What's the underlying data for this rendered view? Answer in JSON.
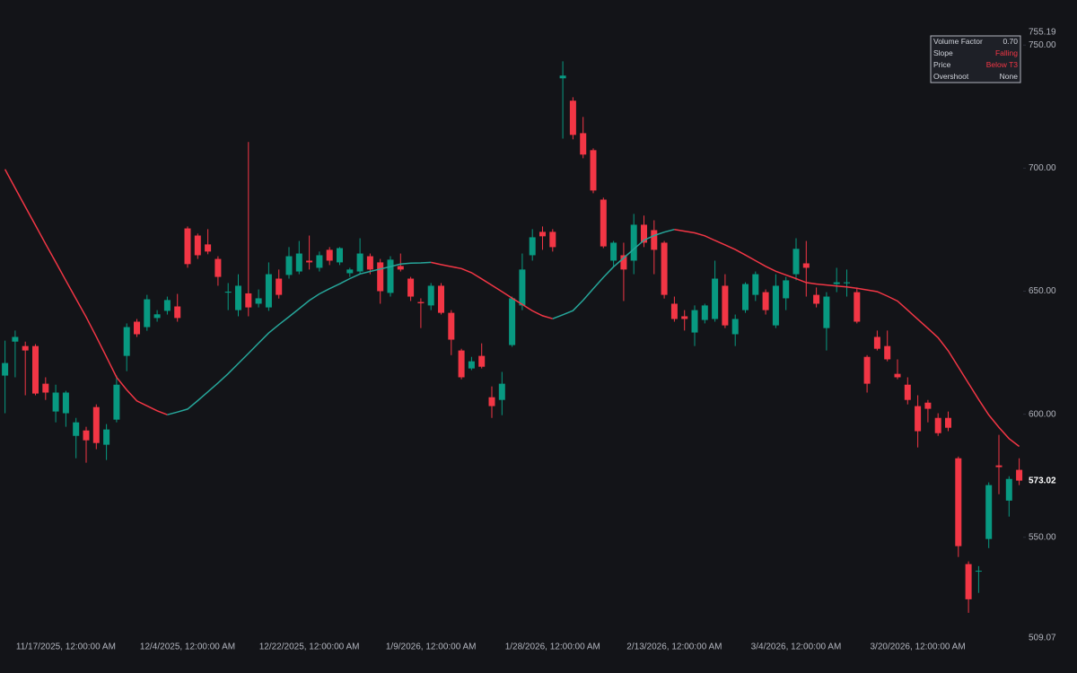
{
  "chart_data": {
    "type": "candlestick",
    "categories": [
      null,
      null,
      null,
      null,
      null,
      null,
      "11/17/2025, 12:00:00 AM",
      null,
      null,
      null,
      null,
      null,
      null,
      null,
      null,
      null,
      null,
      null,
      "12/4/2025, 12:00:00 AM",
      null,
      null,
      null,
      null,
      null,
      null,
      null,
      null,
      null,
      null,
      null,
      "12/22/2025, 12:00:00 AM",
      null,
      null,
      null,
      null,
      null,
      null,
      null,
      null,
      null,
      null,
      null,
      "1/9/2026, 12:00:00 AM",
      null,
      null,
      null,
      null,
      null,
      null,
      null,
      null,
      null,
      null,
      null,
      "1/28/2026, 12:00:00 AM",
      null,
      null,
      null,
      null,
      null,
      null,
      null,
      null,
      null,
      null,
      null,
      "2/13/2026, 12:00:00 AM",
      null,
      null,
      null,
      null,
      null,
      null,
      null,
      null,
      null,
      null,
      null,
      "3/4/2026, 12:00:00 AM",
      null,
      null,
      null,
      null,
      null,
      null,
      null,
      null,
      null,
      null,
      null,
      "3/20/2026, 12:00:00 AM",
      null,
      null,
      null,
      null,
      null,
      null,
      null,
      null,
      null,
      null
    ],
    "open": [
      615.7,
      629.5,
      627.7,
      627.7,
      612.4,
      601.1,
      600.4,
      591.2,
      593.4,
      602.9,
      587.6,
      597.8,
      623.7,
      637.6,
      635.4,
      639.1,
      642,
      643.8,
      675.5,
      672.6,
      669,
      663.1,
      649.4,
      642.3,
      649.1,
      644.9,
      643.4,
      655.1,
      656.6,
      658,
      662.4,
      659.5,
      666.8,
      661.7,
      657.3,
      658,
      664.2,
      661.7,
      649.3,
      660.2,
      655.1,
      645.6,
      644.2,
      652.2,
      641.2,
      625.9,
      618.6,
      623.7,
      606.9,
      605.8,
      628.1,
      644.2,
      664.6,
      674.1,
      674.1,
      736.5,
      727.4,
      714.2,
      707.3,
      687.2,
      662.4,
      664.6,
      662.4,
      677,
      674.8,
      669.7,
      644.9,
      639.8,
      633.2,
      638.3,
      638.7,
      652.2,
      632.5,
      642.3,
      648.5,
      649.6,
      636.1,
      647.1,
      656.9,
      661.3,
      648.5,
      635,
      652.9,
      653.2,
      649.6,
      623.3,
      631.4,
      627.7,
      616.4,
      612,
      603.3,
      604.7,
      598.5,
      598.5,
      582.1,
      539.1,
      536.2,
      549.3,
      579.2,
      564.9,
      577.4
    ],
    "high": [
      629.9,
      634,
      629.5,
      628.5,
      615,
      612,
      609.5,
      598.5,
      594.9,
      604,
      596,
      615.7,
      636.9,
      638.7,
      648.5,
      642.3,
      647.8,
      648.9,
      676.3,
      673.4,
      675.2,
      664.2,
      653.3,
      656.9,
      710.6,
      650.7,
      661.7,
      658.8,
      667.9,
      670.4,
      672.6,
      666.1,
      667.9,
      667.9,
      659.5,
      671.5,
      665.3,
      663.1,
      664.2,
      665.3,
      655.8,
      647.1,
      653.3,
      653.3,
      642.3,
      626.6,
      623.3,
      628.8,
      611.3,
      617.2,
      647.8,
      665.3,
      675.2,
      676.3,
      675.2,
      743.4,
      728.8,
      720.8,
      708,
      688,
      670.4,
      669.7,
      681.4,
      680.7,
      678.8,
      670.4,
      647.8,
      642.3,
      644.2,
      644.9,
      662.4,
      656.9,
      640.5,
      653.6,
      658,
      650.7,
      656.9,
      655.8,
      671.5,
      670.4,
      651.5,
      649.6,
      659.5,
      658.8,
      651.5,
      624,
      634,
      634,
      622.3,
      615,
      607.7,
      605.8,
      600.4,
      601.1,
      582.8,
      540.2,
      538.3,
      572.3,
      591.6,
      574.8,
      582.1
    ],
    "low": [
      600.4,
      615,
      607.7,
      607.7,
      605.8,
      596.7,
      594.9,
      582.1,
      580.3,
      585.8,
      581.4,
      596.7,
      617.5,
      631.4,
      633.9,
      637.6,
      640.5,
      637.6,
      659.5,
      663.1,
      665,
      652.2,
      642.3,
      639.8,
      639.8,
      643.4,
      642,
      647,
      655.1,
      656.9,
      658.8,
      658,
      660.6,
      660.6,
      655.8,
      656.9,
      656.9,
      644.9,
      647.8,
      658,
      646,
      635,
      642.3,
      640.5,
      624,
      614.2,
      617.9,
      618.6,
      598.5,
      599.6,
      627.4,
      642.3,
      662.4,
      666.8,
      666.1,
      712,
      711.7,
      704,
      689.8,
      667.5,
      660.2,
      646,
      656.9,
      667.9,
      656.9,
      647,
      637.6,
      634,
      627.7,
      636.9,
      637.6,
      635,
      627.7,
      641.2,
      646,
      640.5,
      635,
      642.3,
      654.4,
      647.8,
      643.4,
      625.9,
      649.6,
      647.8,
      636.9,
      608.8,
      625.9,
      621.5,
      614.2,
      604,
      586.5,
      596.7,
      591.2,
      593.1,
      542,
      519.3,
      527.4,
      545.6,
      567.5,
      558.4,
      571.2
    ],
    "close": [
      620.8,
      631.4,
      625.9,
      608.4,
      608.8,
      608.8,
      608.8,
      596.7,
      589.4,
      588.3,
      593.8,
      612,
      635.4,
      632.5,
      646.7,
      640.6,
      646.4,
      639.1,
      661,
      664.6,
      666.1,
      655.8,
      649.8,
      652.2,
      643.4,
      647.1,
      656.9,
      648.5,
      664.2,
      665.3,
      661.7,
      664.6,
      662.4,
      667.5,
      658.8,
      665.3,
      658.8,
      650,
      662.8,
      658.8,
      647.8,
      645.1,
      652.2,
      641.2,
      630.3,
      615,
      621.5,
      619.3,
      603.3,
      612.4,
      647.1,
      658.8,
      671.9,
      672.3,
      667.9,
      737.6,
      713.5,
      705.5,
      690.9,
      668.2,
      669.7,
      658.8,
      677,
      669.7,
      666.8,
      648.5,
      638.7,
      638.7,
      642.3,
      644.2,
      655.1,
      636.1,
      638.7,
      652.9,
      656.9,
      642.3,
      652.2,
      654.4,
      667.2,
      659.5,
      644.9,
      647.8,
      653.6,
      653.6,
      637.6,
      612.4,
      626.6,
      622.3,
      615,
      605.8,
      593.1,
      602.2,
      592.3,
      594.5,
      546.4,
      524.8,
      536.4,
      571.2,
      578.5,
      573.7,
      573.02
    ],
    "up_color": "#089981",
    "down_color": "#f23645",
    "t3": {
      "values": [
        699.5,
        691.9,
        684.3,
        676.8,
        669.2,
        661.8,
        654.3,
        646.9,
        639.5,
        631.5,
        623.3,
        615,
        609.9,
        605.4,
        603.4,
        601.4,
        599.8,
        600.9,
        602.1,
        605.5,
        609.1,
        612.7,
        616.5,
        620.6,
        624.7,
        628.9,
        633,
        636.4,
        639.6,
        642.9,
        646.2,
        648.9,
        651,
        653,
        655.1,
        657,
        658,
        659,
        660,
        661,
        661.4,
        661.5,
        661.7,
        660.8,
        660,
        659.2,
        657.5,
        655,
        652.4,
        649.8,
        647.2,
        644.6,
        642,
        640,
        638.8,
        640.4,
        642.1,
        646.3,
        651,
        655.6,
        659.9,
        663.5,
        667.1,
        670.7,
        672.6,
        674,
        675.1,
        674.4,
        673.7,
        672.5,
        670.6,
        668.8,
        666.9,
        664.7,
        662.4,
        660.1,
        658.1,
        656.6,
        655.1,
        653.5,
        652.9,
        652.5,
        652.1,
        651.7,
        651.2,
        650.5,
        649.8,
        648,
        646,
        642.3,
        638.6,
        634.9,
        631.1,
        625.8,
        619.2,
        612.6,
        606,
        599.7,
        594.7,
        590.1,
        586.9
      ],
      "rising_color": "#26a69a",
      "falling_color": "#f23645"
    },
    "ylim": [
      509.07,
      755.19
    ],
    "yticks": [
      {
        "value": 550,
        "label": "550.00"
      },
      {
        "value": 600,
        "label": "600.00"
      },
      {
        "value": 650,
        "label": "650.00"
      },
      {
        "value": 700,
        "label": "700.00"
      },
      {
        "value": 750,
        "label": "750.00"
      }
    ],
    "last_price": 573.02,
    "grid": false
  },
  "info_table": {
    "rows": [
      {
        "label": "Volume Factor",
        "value": "0.70"
      },
      {
        "label": "Slope",
        "value": "Falling",
        "color": "#f23645"
      },
      {
        "label": "Price",
        "value": "Below T3",
        "color": "#f23645"
      },
      {
        "label": "Overshoot",
        "value": "None"
      }
    ]
  }
}
